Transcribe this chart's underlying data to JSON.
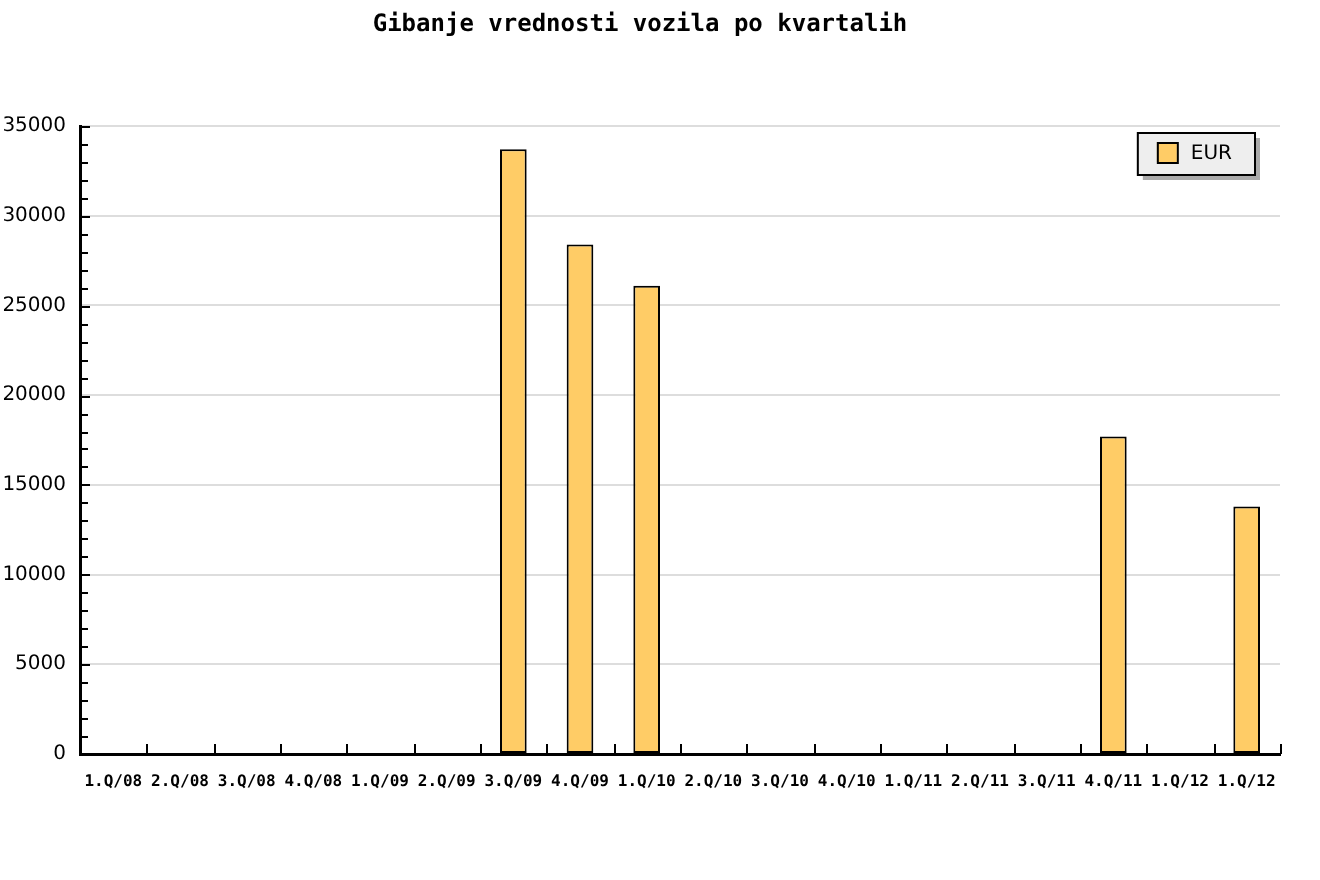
{
  "chart_data": {
    "type": "bar",
    "title": "Gibanje vrednosti vozila po kvartalih",
    "categories": [
      "1.Q/08",
      "2.Q/08",
      "3.Q/08",
      "4.Q/08",
      "1.Q/09",
      "2.Q/09",
      "3.Q/09",
      "4.Q/09",
      "1.Q/10",
      "2.Q/10",
      "3.Q/10",
      "4.Q/10",
      "1.Q/11",
      "2.Q/11",
      "3.Q/11",
      "4.Q/11",
      "1.Q/12",
      "1.Q/12"
    ],
    "series": [
      {
        "name": "EUR",
        "color": "#ffcc66",
        "values": [
          null,
          null,
          null,
          null,
          null,
          null,
          33700,
          28400,
          26100,
          null,
          null,
          null,
          null,
          null,
          null,
          17700,
          null,
          13800
        ]
      }
    ],
    "ylim": [
      0,
      35000
    ],
    "yticks": [
      0,
      {
        "value": 1000,
        "label": null
      },
      {
        "value": 2000,
        "label": null
      },
      {
        "value": 3000,
        "label": null
      },
      {
        "value": 4000,
        "label": null
      },
      5000,
      {
        "value": 6000,
        "label": null
      },
      {
        "value": 7000,
        "label": null
      },
      {
        "value": 8000,
        "label": null
      },
      {
        "value": 9000,
        "label": null
      },
      10000,
      {
        "value": 11000,
        "label": null
      },
      {
        "value": 12000,
        "label": null
      },
      {
        "value": 13000,
        "label": null
      },
      {
        "value": 14000,
        "label": null
      },
      15000,
      {
        "value": 16000,
        "label": null
      },
      {
        "value": 17000,
        "label": null
      },
      {
        "value": 18000,
        "label": null
      },
      {
        "value": 19000,
        "label": null
      },
      20000,
      {
        "value": 21000,
        "label": null
      },
      {
        "value": 22000,
        "label": null
      },
      {
        "value": 23000,
        "label": null
      },
      {
        "value": 24000,
        "label": null
      },
      25000,
      {
        "value": 26000,
        "label": null
      },
      {
        "value": 27000,
        "label": null
      },
      {
        "value": 28000,
        "label": null
      },
      {
        "value": 29000,
        "label": null
      },
      30000,
      {
        "value": 31000,
        "label": null
      },
      {
        "value": 32000,
        "label": null
      },
      {
        "value": 33000,
        "label": null
      },
      {
        "value": 34000,
        "label": null
      },
      35000
    ],
    "grid": "y",
    "legend": "top right"
  }
}
